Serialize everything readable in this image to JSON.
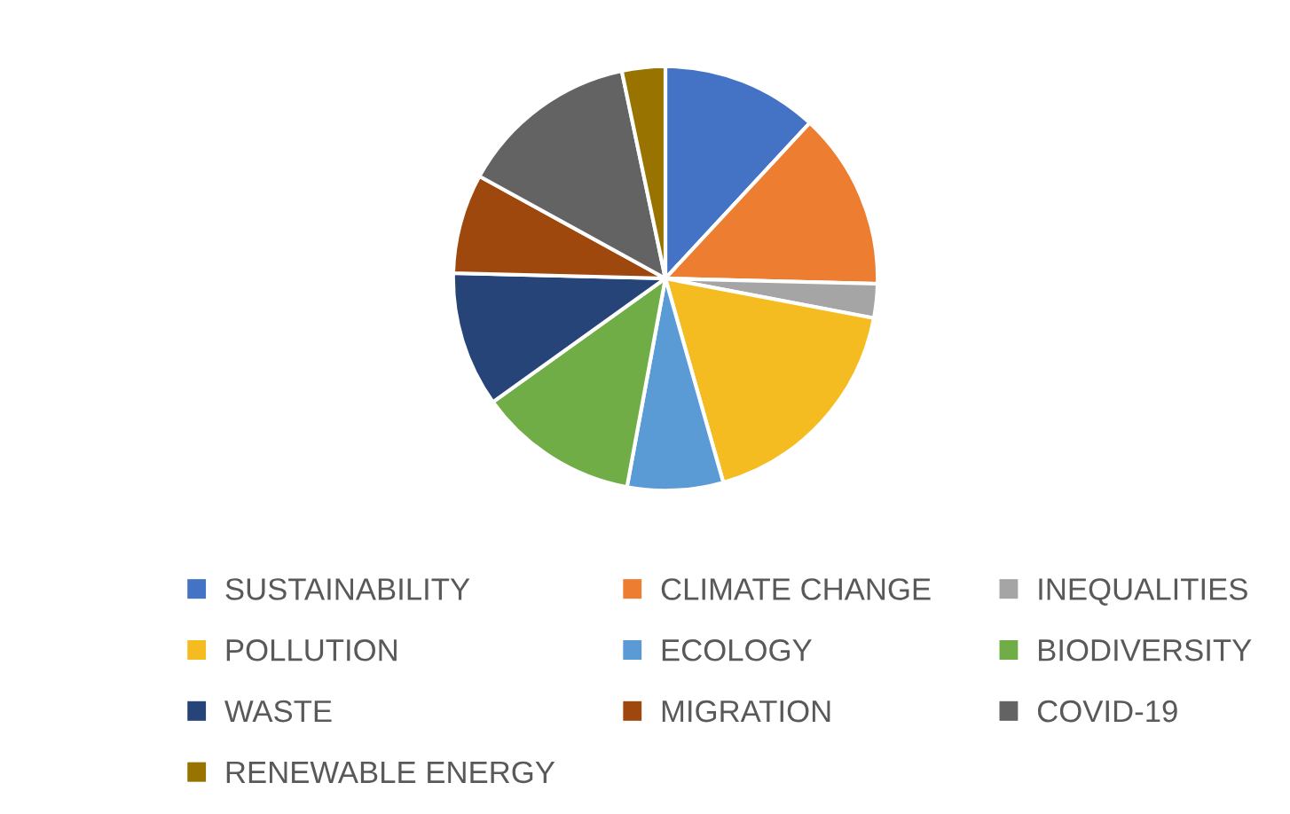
{
  "chart_data": {
    "type": "pie",
    "categories": [
      "SUSTAINABILITY",
      "CLIMATE CHANGE",
      "INEQUALITIES",
      "POLLUTION",
      "ECOLOGY",
      "BIODIVERSITY",
      "WASTE",
      "MIGRATION",
      "COVID-19",
      "RENEWABLE ENERGY"
    ],
    "values": [
      11.9,
      13.5,
      2.6,
      17.6,
      7.3,
      12.2,
      10.3,
      7.6,
      13.7,
      3.3
    ],
    "colors": [
      "#4472c4",
      "#ed7d31",
      "#a5a5a5",
      "#f5bc22",
      "#5b9bd5",
      "#70ad47",
      "#264478",
      "#9e480e",
      "#636363",
      "#997300"
    ],
    "legend": "bottom"
  }
}
